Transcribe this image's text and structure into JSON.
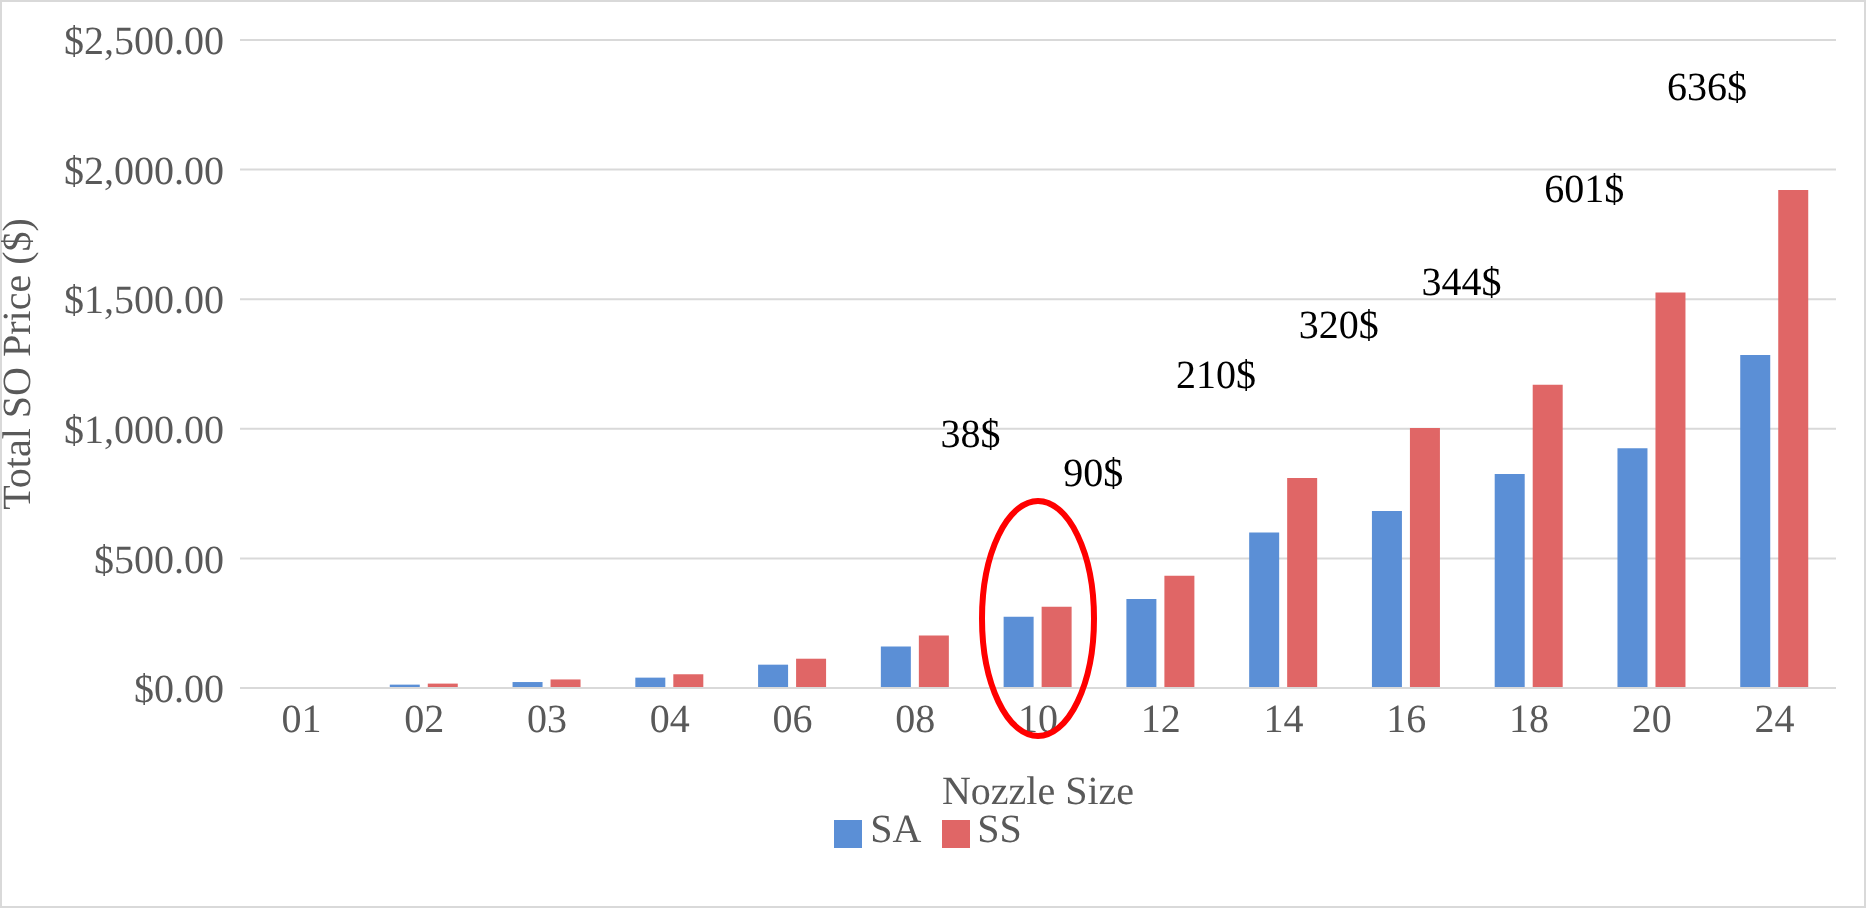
{
  "chart_data": {
    "type": "bar",
    "xlabel": "Nozzle Size",
    "ylabel": "Total SO Price ($)",
    "categories": [
      "01",
      "02",
      "03",
      "04",
      "06",
      "08",
      "10",
      "12",
      "14",
      "16",
      "18",
      "20",
      "24"
    ],
    "series": [
      {
        "name": "SA",
        "color": "#5b8fd6",
        "values": [
          3,
          13,
          23,
          40,
          90,
          160,
          275,
          343,
          600,
          683,
          826,
          925,
          1285
        ]
      },
      {
        "name": "SS",
        "color": "#e06666",
        "values": [
          3,
          17,
          33,
          53,
          113,
          203,
          313,
          433,
          810,
          1003,
          1170,
          1526,
          1921
        ]
      }
    ],
    "ylim": [
      0,
      2500
    ],
    "yticks": [
      {
        "value": 0,
        "label": "$0.00"
      },
      {
        "value": 500,
        "label": "$500.00"
      },
      {
        "value": 1000,
        "label": "$1,000.00"
      },
      {
        "value": 1500,
        "label": "$1,500.00"
      },
      {
        "value": 2000,
        "label": "$2,000.00"
      },
      {
        "value": 2500,
        "label": "$2,500.00"
      }
    ],
    "grid": "y",
    "legend": "bottom",
    "annotations": [
      "38$",
      "90$",
      "210$",
      "320$",
      "344$",
      "601$",
      "636$"
    ]
  }
}
